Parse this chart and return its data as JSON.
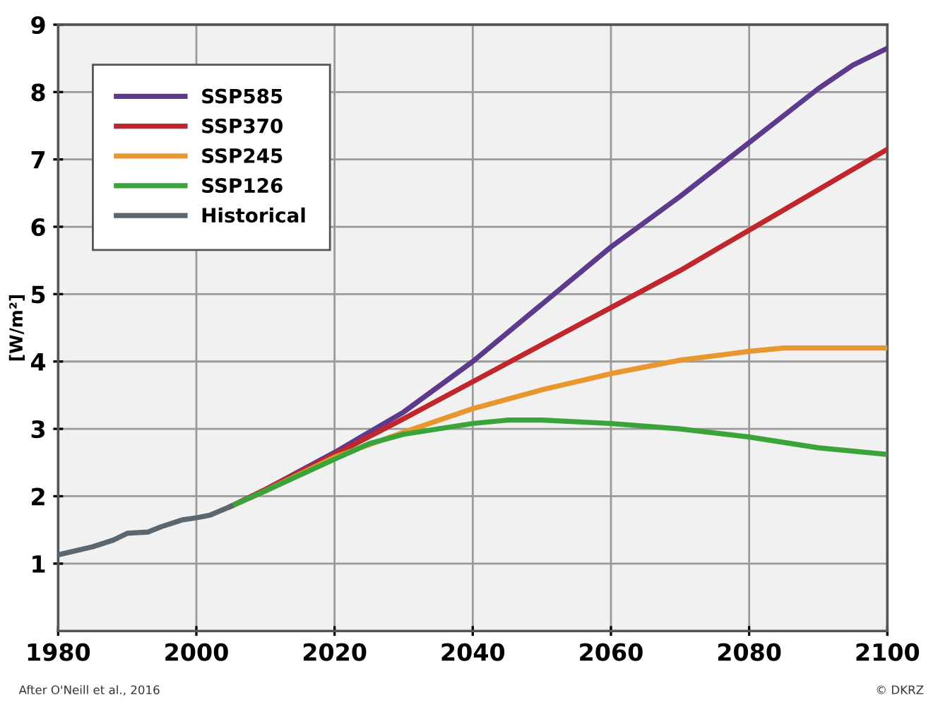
{
  "chart_data": {
    "type": "line",
    "ylabel": "[W/m²]",
    "xlim": [
      1980,
      2100
    ],
    "ylim": [
      0,
      9
    ],
    "xticks": [
      1980,
      2000,
      2020,
      2040,
      2060,
      2080,
      2100
    ],
    "yticks": [
      1,
      2,
      3,
      4,
      5,
      6,
      7,
      8,
      9
    ],
    "grid": true,
    "legend": "top left",
    "marker": "none",
    "line_style": "solid",
    "annotations": [
      "After O'Neill et al., 2016",
      "© DKRZ"
    ],
    "series": [
      {
        "name": "SSP585",
        "color": "#5e3a8c",
        "x": [
          2005,
          2010,
          2020,
          2030,
          2040,
          2050,
          2060,
          2070,
          2080,
          2090,
          2095,
          2100
        ],
        "values": [
          1.85,
          2.1,
          2.65,
          3.25,
          4.0,
          4.85,
          5.7,
          6.45,
          7.25,
          8.05,
          8.4,
          8.65
        ]
      },
      {
        "name": "SSP370",
        "color": "#c0272d",
        "x": [
          2005,
          2010,
          2020,
          2030,
          2040,
          2050,
          2060,
          2070,
          2080,
          2090,
          2100
        ],
        "values": [
          1.85,
          2.1,
          2.62,
          3.15,
          3.7,
          4.25,
          4.8,
          5.35,
          5.95,
          6.55,
          7.15
        ]
      },
      {
        "name": "SSP245",
        "color": "#e8962e",
        "x": [
          2005,
          2010,
          2020,
          2030,
          2040,
          2050,
          2060,
          2070,
          2080,
          2085,
          2090,
          2100
        ],
        "values": [
          1.85,
          2.08,
          2.58,
          2.95,
          3.3,
          3.58,
          3.82,
          4.02,
          4.15,
          4.2,
          4.2,
          4.2
        ]
      },
      {
        "name": "SSP126",
        "color": "#3aa33a",
        "x": [
          2005,
          2010,
          2020,
          2025,
          2030,
          2040,
          2045,
          2050,
          2060,
          2070,
          2080,
          2090,
          2100
        ],
        "values": [
          1.85,
          2.08,
          2.55,
          2.78,
          2.92,
          3.08,
          3.13,
          3.13,
          3.08,
          3.0,
          2.88,
          2.72,
          2.62
        ]
      },
      {
        "name": "Historical",
        "color": "#5a6670",
        "x": [
          1980,
          1985,
          1988,
          1990,
          1993,
          1995,
          1998,
          2000,
          2002,
          2005
        ],
        "values": [
          1.13,
          1.25,
          1.35,
          1.45,
          1.47,
          1.55,
          1.65,
          1.68,
          1.72,
          1.85
        ]
      }
    ]
  }
}
